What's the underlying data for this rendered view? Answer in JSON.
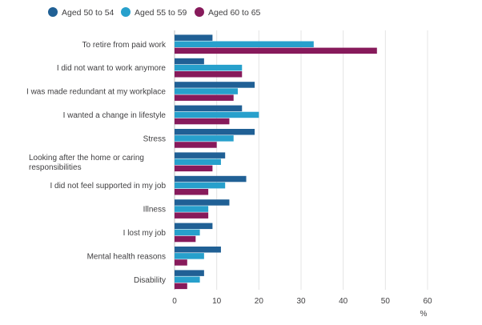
{
  "chart_data": {
    "type": "bar",
    "orientation": "horizontal",
    "categories": [
      "To retire from paid work",
      "I did not want to work anymore",
      "I was made redundant at my workplace",
      "I wanted a change in lifestyle",
      "Stress",
      "Looking after the home or caring responsibilities",
      "I did not feel supported in my job",
      "Illness",
      "I lost my job",
      "Mental health reasons",
      "Disability"
    ],
    "category_lines": [
      [
        "To retire from paid work"
      ],
      [
        "I did not want to work anymore"
      ],
      [
        "I was made redundant at my workplace"
      ],
      [
        "I wanted a change in lifestyle"
      ],
      [
        "Stress"
      ],
      [
        "Looking after the home or caring",
        "responsibilities"
      ],
      [
        "I did not feel supported in my job"
      ],
      [
        "Illness"
      ],
      [
        "I lost my job"
      ],
      [
        "Mental health reasons"
      ],
      [
        "Disability"
      ]
    ],
    "series": [
      {
        "name": "Aged 50 to 54",
        "color": "#206095",
        "values": [
          9,
          7,
          19,
          16,
          19,
          12,
          17,
          13,
          9,
          11,
          7
        ]
      },
      {
        "name": "Aged 55 to 59",
        "color": "#27a0cc",
        "values": [
          33,
          16,
          15,
          20,
          14,
          11,
          12,
          8,
          6,
          7,
          6
        ]
      },
      {
        "name": "Aged 60 to 65",
        "color": "#871a5b",
        "values": [
          48,
          16,
          14,
          13,
          10,
          9,
          8,
          8,
          5,
          3,
          3
        ]
      }
    ],
    "xlim": [
      0,
      60
    ],
    "xticks": [
      0,
      10,
      20,
      30,
      40,
      50,
      60
    ],
    "xlabel": "%",
    "grid": "vertical",
    "legend": "top-left"
  }
}
